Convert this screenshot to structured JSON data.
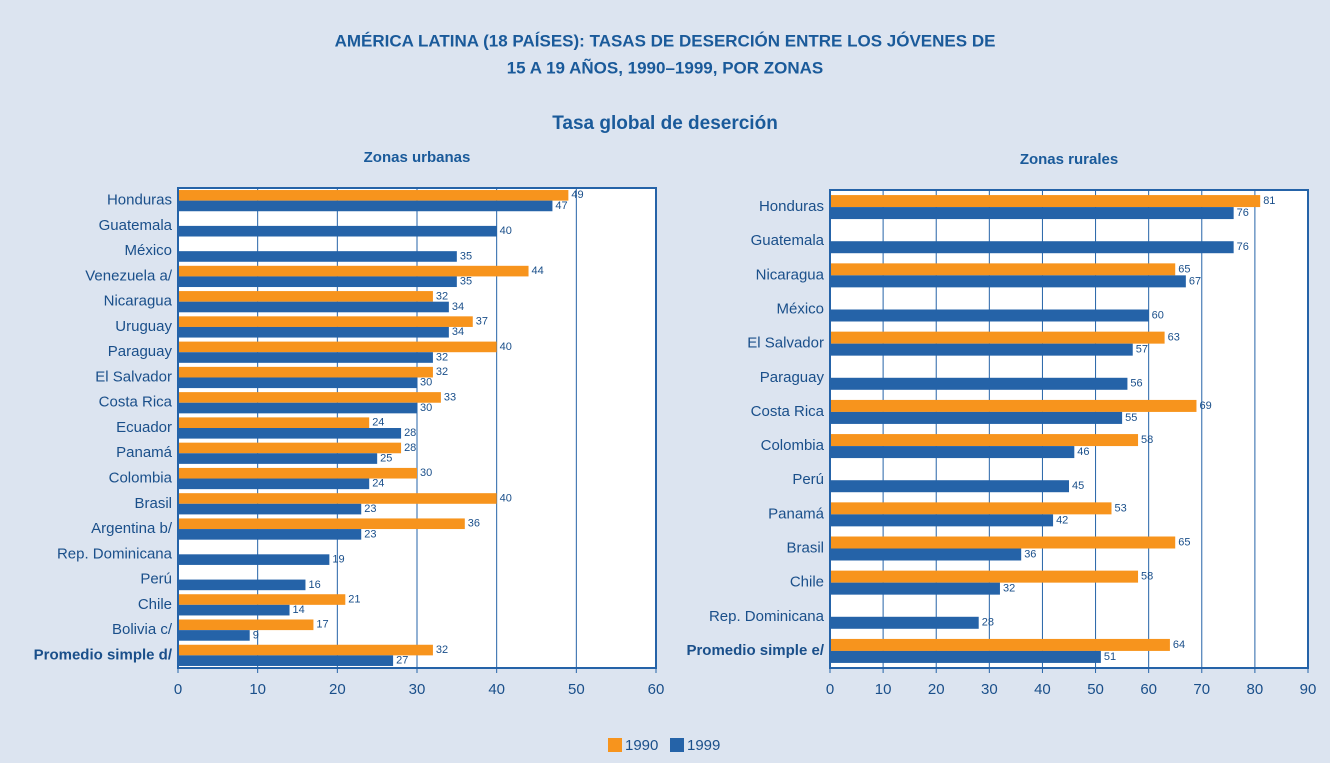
{
  "title": [
    "AMÉRICA LATINA (18 PAÍSES): TASAS DE DESERCIÓN ENTRE LOS JÓVENES DE",
    "15 A 19 AÑOS, 1990–1999, POR ZONAS"
  ],
  "subtitle": "Tasa global de deserción",
  "chart_data": [
    {
      "type": "hbar",
      "title": "Zonas urbanas",
      "categories": [
        "Honduras",
        "Guatemala",
        "México",
        "Venezuela a/",
        "Nicaragua",
        "Uruguay",
        "Paraguay",
        "El Salvador",
        "Costa Rica",
        "Ecuador",
        "Panamá",
        "Colombia",
        "Brasil",
        "Argentina b/",
        "Rep. Dominicana",
        "Perú",
        "Chile",
        "Bolivia c/",
        "Promedio simple d/"
      ],
      "series": [
        {
          "name": "1990",
          "color": "#f7941d",
          "values": [
            49,
            null,
            null,
            44,
            32,
            37,
            40,
            32,
            33,
            24,
            28,
            30,
            40,
            36,
            null,
            null,
            21,
            17,
            32
          ]
        },
        {
          "name": "1999",
          "color": "#2563a8",
          "values": [
            47,
            40,
            35,
            35,
            34,
            34,
            32,
            30,
            30,
            28,
            25,
            24,
            23,
            23,
            19,
            16,
            14,
            9,
            27
          ]
        }
      ],
      "xlim": [
        0,
        60
      ],
      "xticks": [
        0,
        10,
        20,
        30,
        40,
        50,
        60
      ],
      "grid": true
    },
    {
      "type": "hbar",
      "title": "Zonas rurales",
      "categories": [
        "Honduras",
        "Guatemala",
        "Nicaragua",
        "México",
        "El Salvador",
        "Paraguay",
        "Costa Rica",
        "Colombia",
        "Perú",
        "Panamá",
        "Brasil",
        "Chile",
        "Rep. Dominicana",
        "Promedio simple e/"
      ],
      "series": [
        {
          "name": "1990",
          "color": "#f7941d",
          "values": [
            81,
            null,
            65,
            null,
            63,
            null,
            69,
            58,
            null,
            53,
            65,
            58,
            null,
            64
          ]
        },
        {
          "name": "1999",
          "color": "#2563a8",
          "values": [
            76,
            76,
            67,
            60,
            57,
            56,
            55,
            46,
            45,
            42,
            36,
            32,
            28,
            51
          ]
        }
      ],
      "xlim": [
        0,
        90
      ],
      "xticks": [
        0,
        10,
        20,
        30,
        40,
        50,
        60,
        70,
        80,
        90
      ],
      "grid": true
    }
  ]
}
